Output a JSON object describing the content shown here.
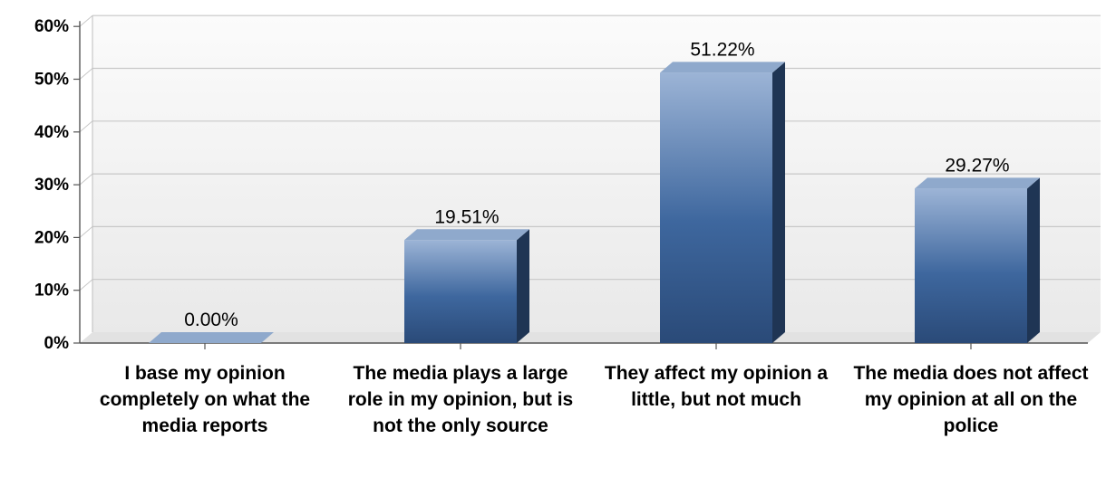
{
  "chart_data": {
    "type": "bar",
    "categories": [
      "I base my opinion completely on what the media reports",
      "The media plays a large role in my opinion, but is not the only source",
      "They affect my opinion a little, but not much",
      "The media does not affect my opinion at all on the police"
    ],
    "values": [
      0.0,
      19.51,
      51.22,
      29.27
    ],
    "value_labels": [
      "0.00%",
      "19.51%",
      "51.22%",
      "29.27%"
    ],
    "yticks": [
      "0%",
      "10%",
      "20%",
      "30%",
      "40%",
      "50%",
      "60%"
    ],
    "ylim": [
      0,
      60
    ],
    "grid": true,
    "legend": "none",
    "colors": {
      "bar_top": "#8fa9cc",
      "bar_light": "#9cb4d6",
      "bar_mid": "#3e679e",
      "bar_dark": "#2a4a78",
      "bar_side": "#1f3554",
      "grid": "#c8c8c8",
      "wall": "#f2f2f2",
      "axis": "#555555"
    }
  }
}
